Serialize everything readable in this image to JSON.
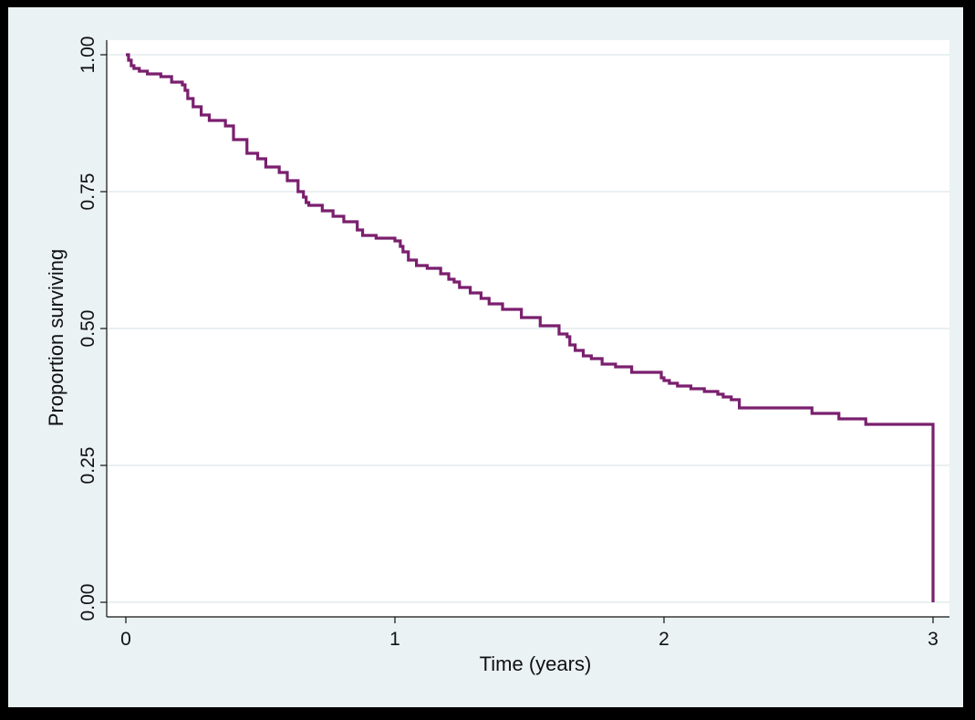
{
  "chart_data": {
    "type": "line",
    "title": "",
    "xlabel": "Time (years)",
    "ylabel": "Proportion surviving",
    "xlim": [
      0,
      3
    ],
    "ylim": [
      0,
      1
    ],
    "xticks": [
      0,
      1,
      2,
      3
    ],
    "xtick_labels": [
      "0",
      "1",
      "2",
      "3"
    ],
    "yticks": [
      0,
      0.25,
      0.5,
      0.75,
      1
    ],
    "ytick_labels": [
      "0.00",
      "0.25",
      "0.50",
      "0.75",
      "1.00"
    ],
    "grid": true,
    "legend": "none",
    "step": true,
    "colors": {
      "line": "#7a1f6e",
      "plot_background": "#ffffff",
      "outer_background": "#eaf2f3",
      "frame": "#000000",
      "grid": "#e3ecee"
    },
    "series": [
      {
        "x": [
          0,
          0.01,
          0.02,
          0.03,
          0.05,
          0.08,
          0.13,
          0.17,
          0.21,
          0.22,
          0.23,
          0.25,
          0.28,
          0.31,
          0.37,
          0.4,
          0.45,
          0.49,
          0.52,
          0.57,
          0.6,
          0.64,
          0.66,
          0.67,
          0.68,
          0.73,
          0.77,
          0.81,
          0.86,
          0.88,
          0.93,
          1.0,
          1.02,
          1.03,
          1.05,
          1.08,
          1.12,
          1.17,
          1.2,
          1.22,
          1.24,
          1.28,
          1.32,
          1.35,
          1.4,
          1.47,
          1.54,
          1.61,
          1.64,
          1.65,
          1.67,
          1.7,
          1.73,
          1.77,
          1.82,
          1.88,
          1.99,
          2.0,
          2.02,
          2.05,
          2.1,
          2.15,
          2.2,
          2.22,
          2.25,
          2.28,
          2.45,
          2.55,
          2.65,
          2.75,
          2.99,
          3.0
        ],
        "y": [
          1.0,
          0.99,
          0.98,
          0.975,
          0.97,
          0.965,
          0.96,
          0.95,
          0.945,
          0.935,
          0.92,
          0.905,
          0.89,
          0.88,
          0.87,
          0.845,
          0.82,
          0.81,
          0.795,
          0.785,
          0.77,
          0.75,
          0.74,
          0.73,
          0.725,
          0.715,
          0.705,
          0.695,
          0.68,
          0.67,
          0.665,
          0.66,
          0.65,
          0.64,
          0.625,
          0.615,
          0.61,
          0.6,
          0.59,
          0.585,
          0.575,
          0.565,
          0.555,
          0.545,
          0.535,
          0.52,
          0.505,
          0.49,
          0.485,
          0.47,
          0.46,
          0.45,
          0.445,
          0.435,
          0.43,
          0.42,
          0.41,
          0.405,
          0.4,
          0.395,
          0.39,
          0.385,
          0.38,
          0.375,
          0.37,
          0.355,
          0.355,
          0.345,
          0.335,
          0.325,
          0.325,
          0.0
        ]
      }
    ]
  }
}
